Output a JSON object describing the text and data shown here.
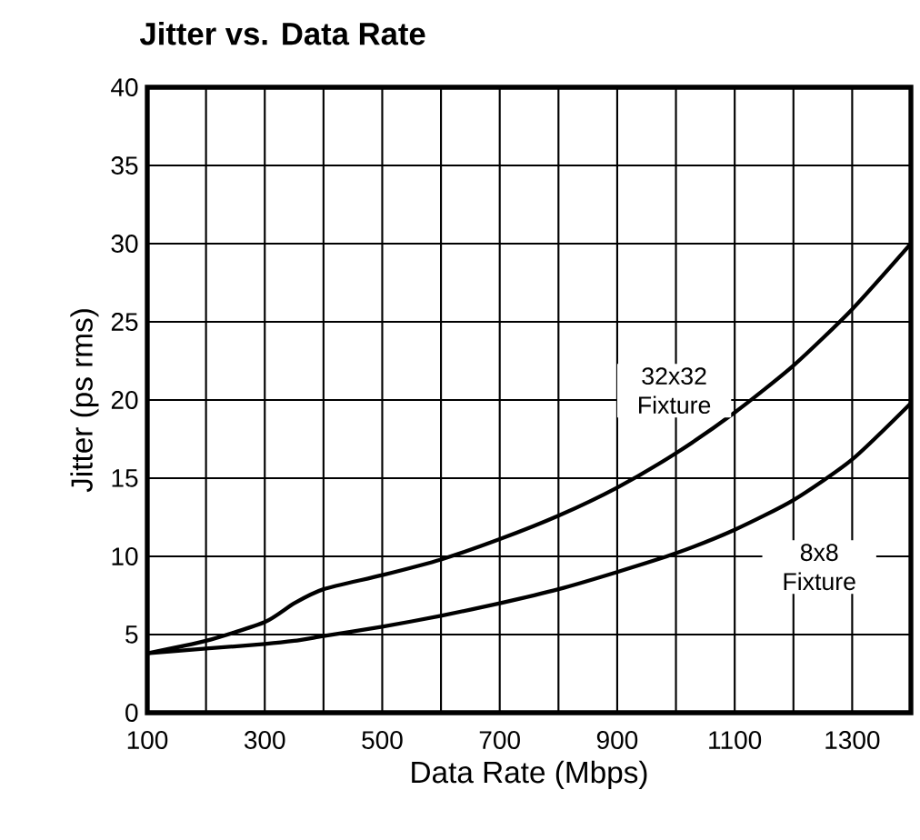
{
  "chart_data": {
    "type": "line",
    "title": "Jitter vs. Data Rate",
    "xlabel": "Data Rate (Mbps)",
    "ylabel": "Jitter (ps rms)",
    "x": [
      100,
      200,
      300,
      350,
      400,
      500,
      600,
      700,
      800,
      900,
      1000,
      1100,
      1200,
      1300,
      1400
    ],
    "series": [
      {
        "color": "#000000",
        "values": [
          3.8,
          4.6,
          5.8,
          7,
          7.9,
          8.8,
          9.8,
          11.1,
          12.6,
          14.4,
          16.6,
          19.2,
          22.2,
          25.8,
          30
        ]
      },
      {
        "color": "#000000",
        "values": [
          3.8,
          4.1,
          4.4,
          4.6,
          4.9,
          5.5,
          6.2,
          7,
          7.9,
          9,
          10.2,
          11.7,
          13.6,
          16.2,
          19.8
        ]
      }
    ],
    "xlim": [
      100,
      1400
    ],
    "ylim": [
      0,
      40
    ],
    "xticks": [
      100,
      {
        "value": 200,
        "label": null
      },
      300,
      {
        "value": 400,
        "label": null
      },
      500,
      {
        "value": 600,
        "label": null
      },
      700,
      {
        "value": 800,
        "label": null
      },
      900,
      {
        "value": 1000,
        "label": null
      },
      1100,
      {
        "value": 1200,
        "label": null
      },
      1300,
      {
        "value": 1400,
        "label": null
      }
    ],
    "yticks": [
      0,
      5,
      10,
      15,
      20,
      25,
      30,
      35,
      40
    ],
    "grid": true,
    "marker": "none",
    "line_style": "solid",
    "annotations": [
      "32x32 Fixture",
      "8x8 Fixture"
    ]
  }
}
